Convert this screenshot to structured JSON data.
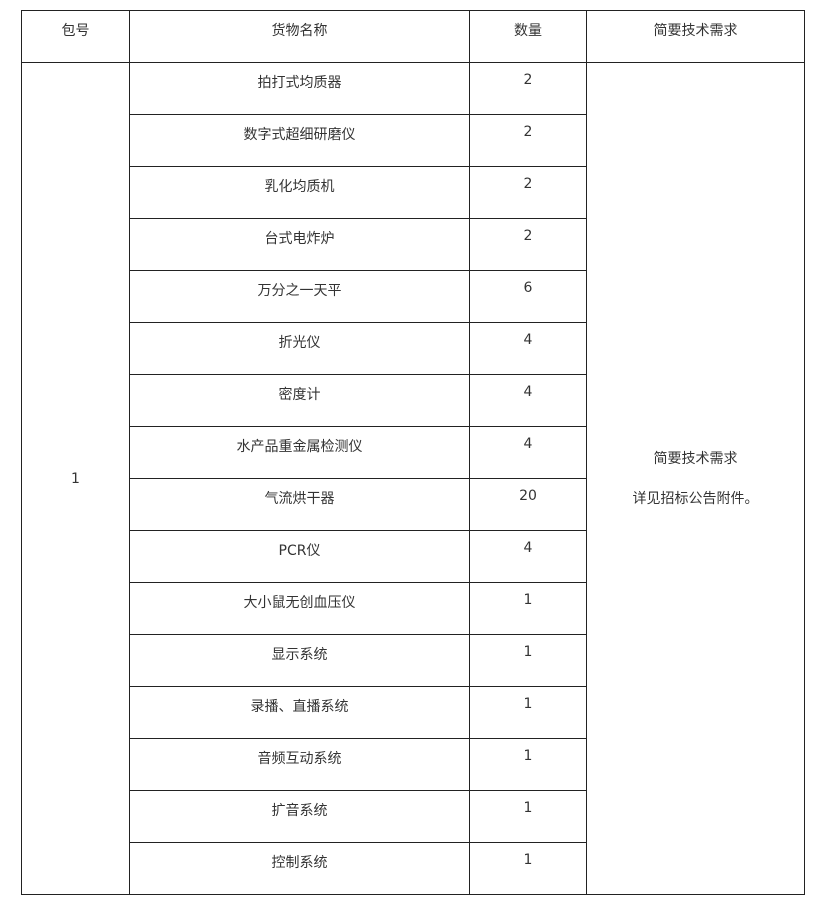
{
  "table": {
    "headers": [
      "包号",
      "货物名称",
      "数量",
      "简要技术需求"
    ],
    "package_number": "1",
    "requirements": {
      "title": "简要技术需求",
      "detail": "详见招标公告附件。"
    },
    "rows": [
      {
        "name": "拍打式均质器",
        "quantity": "2"
      },
      {
        "name": "数字式超细研磨仪",
        "quantity": "2"
      },
      {
        "name": "乳化均质机",
        "quantity": "2"
      },
      {
        "name": "台式电炸炉",
        "quantity": "2"
      },
      {
        "name": "万分之一天平",
        "quantity": "6"
      },
      {
        "name": "折光仪",
        "quantity": "4"
      },
      {
        "name": "密度计",
        "quantity": "4"
      },
      {
        "name": "水产品重金属检测仪",
        "quantity": "4"
      },
      {
        "name": "气流烘干器",
        "quantity": "20"
      },
      {
        "name": "PCR仪",
        "quantity": "4"
      },
      {
        "name": "大小鼠无创血压仪",
        "quantity": "1"
      },
      {
        "name": "显示系统",
        "quantity": "1"
      },
      {
        "name": "录播、直播系统",
        "quantity": "1"
      },
      {
        "name": "音频互动系统",
        "quantity": "1"
      },
      {
        "name": "扩音系统",
        "quantity": "1"
      },
      {
        "name": "控制系统",
        "quantity": "1"
      }
    ]
  }
}
